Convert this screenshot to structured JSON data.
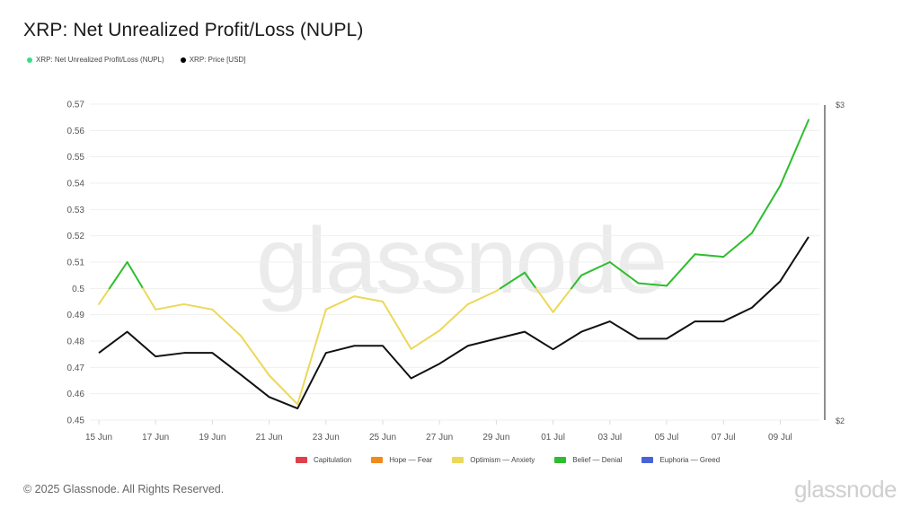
{
  "title": "XRP: Net Unrealized Profit/Loss (NUPL)",
  "top_legend": [
    {
      "label": "XRP: Net Unrealized Profit/Loss (NUPL)",
      "color": "#3ddc84"
    },
    {
      "label": "XRP: Price [USD]",
      "color": "#000000"
    }
  ],
  "watermark": "glassnode",
  "zone_legend": [
    {
      "label": "Capitulation",
      "color": "#e0404a"
    },
    {
      "label": "Hope — Fear",
      "color": "#f08a1c"
    },
    {
      "label": "Optimism — Anxiety",
      "color": "#ecd85a"
    },
    {
      "label": "Belief — Denial",
      "color": "#2fbd2f"
    },
    {
      "label": "Euphoria — Greed",
      "color": "#4a62d8"
    }
  ],
  "footer": {
    "copyright": "© 2025 Glassnode. All Rights Reserved.",
    "brand": "glassnode"
  },
  "chart_data": {
    "type": "line",
    "title": "XRP: Net Unrealized Profit/Loss (NUPL)",
    "x": [
      "15 Jun",
      "16 Jun",
      "17 Jun",
      "18 Jun",
      "19 Jun",
      "20 Jun",
      "21 Jun",
      "22 Jun",
      "23 Jun",
      "24 Jun",
      "25 Jun",
      "26 Jun",
      "27 Jun",
      "28 Jun",
      "29 Jun",
      "30 Jun",
      "01 Jul",
      "02 Jul",
      "03 Jul",
      "04 Jul",
      "05 Jul",
      "06 Jul",
      "07 Jul",
      "08 Jul",
      "09 Jul",
      "10 Jul"
    ],
    "x_tick_labels": [
      "15 Jun",
      "17 Jun",
      "19 Jun",
      "21 Jun",
      "23 Jun",
      "25 Jun",
      "27 Jun",
      "29 Jun",
      "01 Jul",
      "03 Jul",
      "05 Jul",
      "07 Jul",
      "09 Jul"
    ],
    "series": [
      {
        "name": "XRP: Net Unrealized Profit/Loss (NUPL)",
        "axis": "left",
        "values": [
          0.494,
          0.51,
          0.492,
          0.494,
          0.492,
          0.482,
          0.467,
          0.456,
          0.492,
          0.497,
          0.495,
          0.477,
          0.484,
          0.494,
          0.499,
          0.506,
          0.491,
          0.505,
          0.51,
          0.502,
          0.501,
          0.513,
          0.512,
          0.521,
          0.539,
          0.564
        ],
        "color_by_zone": {
          "below_0.5": "#ecd85a",
          "0.5_to_0.75": "#2fbd2f"
        }
      },
      {
        "name": "XRP: Price [USD]",
        "axis": "right",
        "color": "#000000",
        "values": [
          2.18,
          2.24,
          2.17,
          2.18,
          2.18,
          2.12,
          2.06,
          2.03,
          2.18,
          2.2,
          2.2,
          2.11,
          2.15,
          2.2,
          2.22,
          2.24,
          2.19,
          2.24,
          2.27,
          2.22,
          2.22,
          2.27,
          2.27,
          2.31,
          2.39,
          2.53
        ]
      }
    ],
    "y_left": {
      "ticks": [
        "0.45",
        "0.46",
        "0.47",
        "0.48",
        "0.49",
        "0.5",
        "0.51",
        "0.52",
        "0.53",
        "0.54",
        "0.55",
        "0.56",
        "0.57"
      ],
      "range": [
        0.45,
        0.57
      ]
    },
    "y_right": {
      "ticks": [
        "$2",
        "$3"
      ],
      "range": [
        2,
        3
      ],
      "scale": "log"
    },
    "grid": true,
    "legend_position": "top-left and bottom-center"
  }
}
